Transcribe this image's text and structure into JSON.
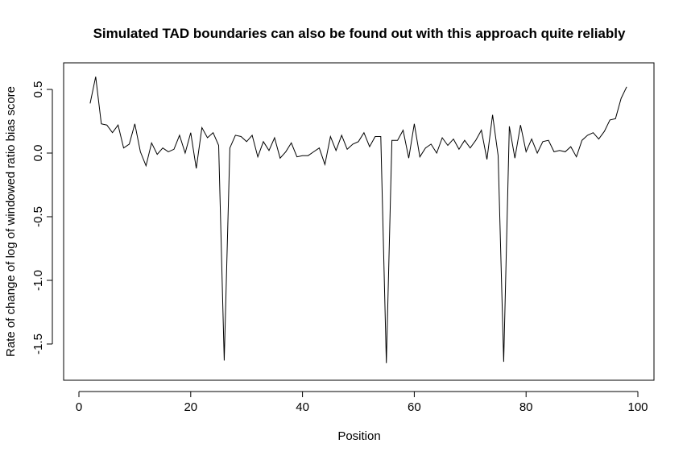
{
  "chart_data": {
    "type": "line",
    "title": "Simulated TAD boundaries can also be found out with this approach quite reliably",
    "xlabel": "Position",
    "ylabel": "Rate of change of log of windowed ratio bias score",
    "xlim": [
      0,
      100
    ],
    "ylim": [
      -1.6,
      0.55
    ],
    "xticks": [
      0,
      20,
      40,
      60,
      80,
      100
    ],
    "yticks": [
      -1.5,
      -1.0,
      -0.5,
      0.0,
      0.5
    ],
    "ytick_labels": [
      "-1.5",
      "-1.0",
      "-0.5",
      "0.0",
      "0.5"
    ],
    "grid": false,
    "box": true,
    "line_color": "#000000",
    "series": [
      {
        "x": [
          2,
          3,
          4,
          5,
          6,
          7,
          8,
          9,
          10,
          11,
          12,
          13,
          14,
          15,
          16,
          17,
          18,
          19,
          20,
          21,
          22,
          23,
          24,
          25,
          26,
          27,
          28,
          29,
          30,
          31,
          32,
          33,
          34,
          35,
          36,
          37,
          38,
          39,
          40,
          41,
          42,
          43,
          44,
          45,
          46,
          47,
          48,
          49,
          50,
          51,
          52,
          53,
          54,
          55,
          56,
          57,
          58,
          59,
          60,
          61,
          62,
          63,
          64,
          65,
          66,
          67,
          68,
          69,
          70,
          71,
          72,
          73,
          74,
          75,
          76,
          77,
          78,
          79,
          80,
          81,
          82,
          83,
          84,
          85,
          86,
          87,
          88,
          89,
          90,
          91,
          92,
          93,
          94,
          95,
          96,
          97,
          98
        ],
        "y": [
          0.39,
          0.6,
          0.23,
          0.22,
          0.16,
          0.22,
          0.04,
          0.07,
          0.23,
          0.01,
          -0.1,
          0.08,
          -0.01,
          0.04,
          0.01,
          0.03,
          0.14,
          0.0,
          0.16,
          -0.12,
          0.2,
          0.12,
          0.16,
          0.06,
          -1.63,
          0.04,
          0.14,
          0.13,
          0.09,
          0.14,
          -0.03,
          0.09,
          0.02,
          0.12,
          -0.04,
          0.01,
          0.08,
          -0.03,
          -0.02,
          -0.02,
          0.01,
          0.04,
          -0.09,
          0.13,
          0.02,
          0.14,
          0.03,
          0.07,
          0.09,
          0.16,
          0.05,
          0.13,
          0.13,
          -1.65,
          0.1,
          0.1,
          0.18,
          -0.04,
          0.23,
          -0.03,
          0.04,
          0.07,
          0.0,
          0.12,
          0.06,
          0.11,
          0.03,
          0.1,
          0.04,
          0.1,
          0.18,
          -0.05,
          0.3,
          -0.02,
          -1.64,
          0.21,
          -0.04,
          0.22,
          0.01,
          0.11,
          0.0,
          0.09,
          0.1,
          0.01,
          0.02,
          0.01,
          0.05,
          -0.03,
          0.1,
          0.14,
          0.16,
          0.11,
          0.17,
          0.26,
          0.27,
          0.43,
          0.52
        ]
      }
    ]
  }
}
